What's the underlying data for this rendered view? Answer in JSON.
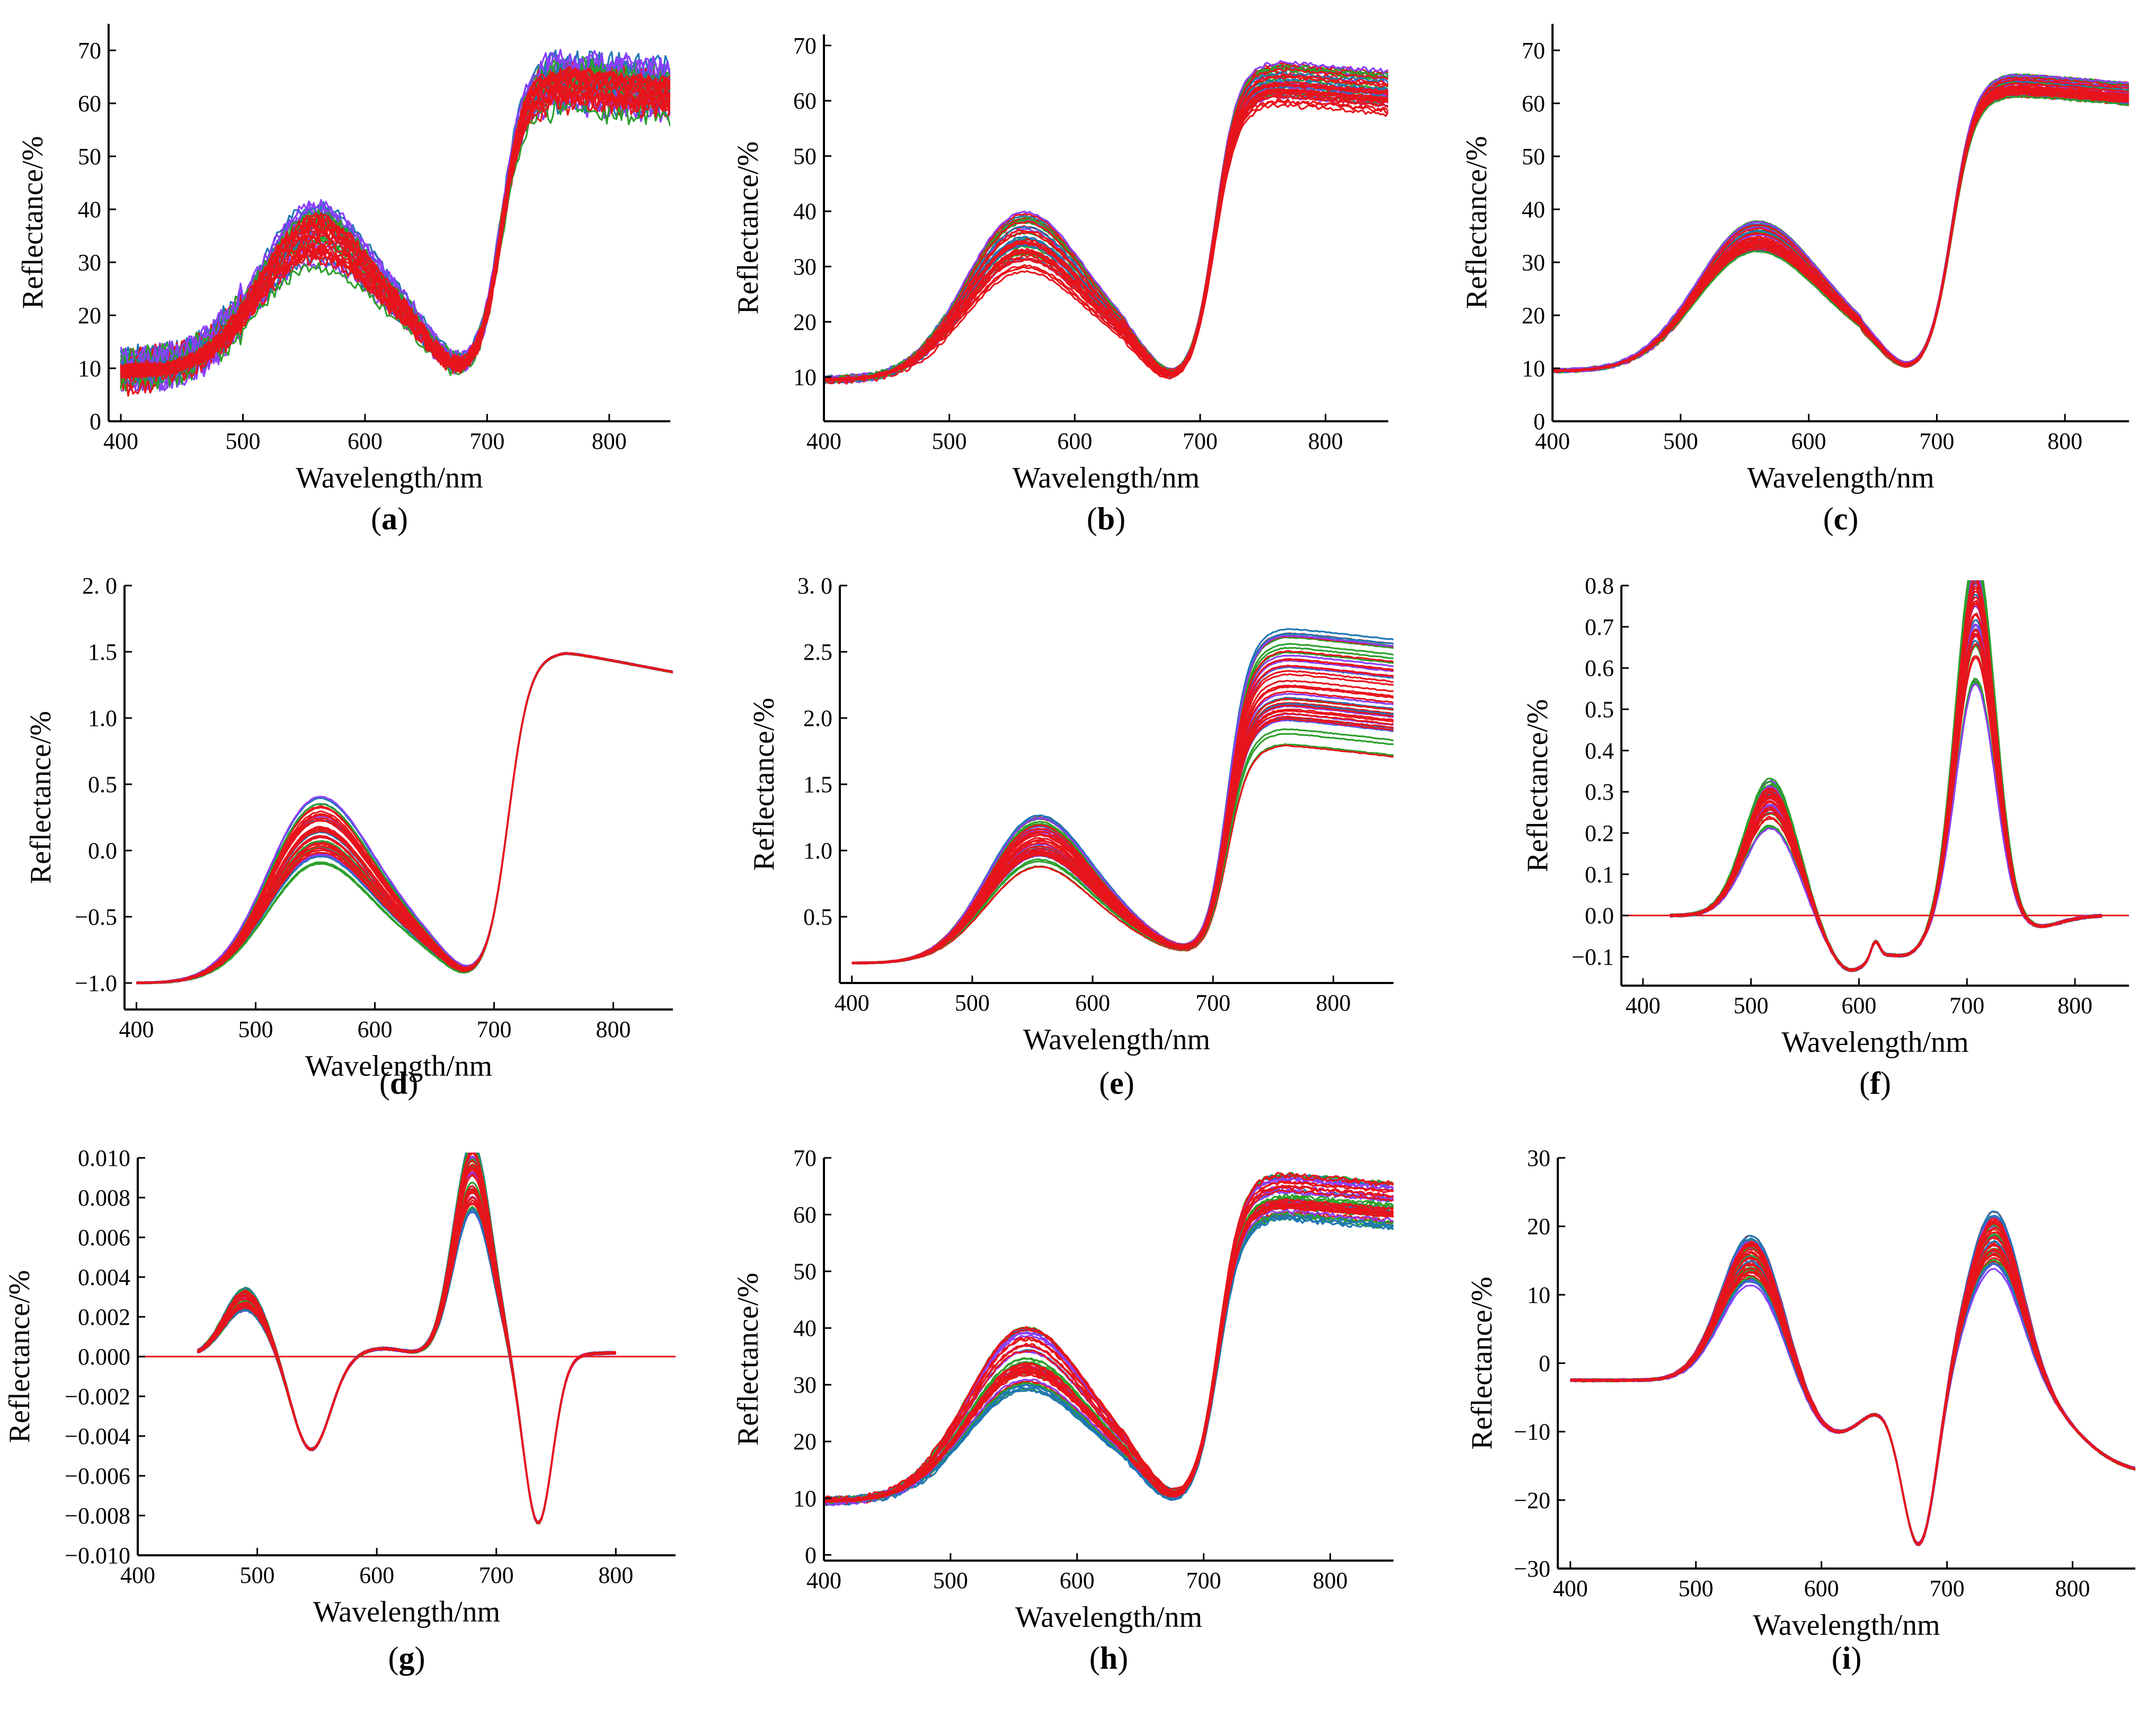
{
  "chart_data": [
    {
      "id": "a",
      "type": "line",
      "caption": "a",
      "shape": "raw",
      "noise": 3.5,
      "xlabel": "Wavelength/nm",
      "ylabel": "Reflectance/%",
      "xlim": [
        390,
        850
      ],
      "ylim": [
        0,
        75
      ],
      "xticks": [
        400,
        500,
        600,
        700,
        800
      ],
      "yticks": [
        0,
        10,
        20,
        30,
        40,
        50,
        60,
        70
      ],
      "ytick_labels": [
        "0",
        "10",
        "20",
        "30",
        "40",
        "50",
        "60",
        "70"
      ],
      "x_start": 400,
      "x_end": 850,
      "series_colors": [
        "#8a3ffc",
        "#2ca02c",
        "#1f77b4",
        "#e8141c"
      ]
    },
    {
      "id": "b",
      "type": "line",
      "caption": "b",
      "shape": "raw",
      "noise": 0.6,
      "xlabel": "Wavelength/nm",
      "ylabel": "Reflectance/%",
      "xlim": [
        400,
        850
      ],
      "ylim": [
        2,
        72
      ],
      "xticks": [
        400,
        500,
        600,
        700,
        800
      ],
      "yticks": [
        10,
        20,
        30,
        40,
        50,
        60,
        70
      ],
      "ytick_labels": [
        "10",
        "20",
        "30",
        "40",
        "50",
        "60",
        "70"
      ],
      "x_start": 400,
      "x_end": 850,
      "series_colors": [
        "#8a3ffc",
        "#2ca02c",
        "#1f77b4",
        "#e8141c"
      ]
    },
    {
      "id": "c",
      "type": "line",
      "caption": "c",
      "shape": "raw",
      "noise": 0.3,
      "spread": 0.25,
      "xlabel": "Wavelength/nm",
      "ylabel": "Reflectance/%",
      "xlim": [
        400,
        850
      ],
      "ylim": [
        0,
        75
      ],
      "xticks": [
        400,
        500,
        600,
        700,
        800
      ],
      "yticks": [
        0,
        10,
        20,
        30,
        40,
        50,
        60,
        70
      ],
      "ytick_labels": [
        "0",
        "10",
        "20",
        "30",
        "40",
        "50",
        "60",
        "70"
      ],
      "x_start": 400,
      "x_end": 850,
      "series_colors": [
        "#2ca02c",
        "#8a3ffc",
        "#1f77b4",
        "#e8141c"
      ]
    },
    {
      "id": "d",
      "type": "line",
      "caption": "d",
      "shape": "snv",
      "noise": 0.01,
      "xlabel": "Wavelength/nm",
      "ylabel": "Reflectance/%",
      "xlim": [
        390,
        850
      ],
      "ylim": [
        -1.2,
        2.0
      ],
      "xticks": [
        400,
        500,
        600,
        700,
        800
      ],
      "yticks": [
        -1.0,
        -0.5,
        0.0,
        0.5,
        1.0,
        1.5,
        2.0
      ],
      "ytick_labels": [
        "−1.0",
        "−0.5",
        "0.0",
        "0.5",
        "1.0",
        "1.5",
        "2. 0"
      ],
      "x_start": 400,
      "x_end": 850,
      "series_colors": [
        "#8a3ffc",
        "#2ca02c",
        "#1f77b4",
        "#e8141c"
      ]
    },
    {
      "id": "e",
      "type": "line",
      "caption": "e",
      "shape": "msc",
      "noise": 0.01,
      "xlabel": "Wavelength/nm",
      "ylabel": "Reflectance/%",
      "xlim": [
        390,
        850
      ],
      "ylim": [
        0.0,
        3.0
      ],
      "xticks": [
        400,
        500,
        600,
        700,
        800
      ],
      "yticks": [
        0.5,
        1.0,
        1.5,
        2.0,
        2.5,
        3.0
      ],
      "ytick_labels": [
        "0.5",
        "1.0",
        "1.5",
        "2.0",
        "2.5",
        "3. 0"
      ],
      "x_start": 400,
      "x_end": 850,
      "series_colors": [
        "#8a3ffc",
        "#2ca02c",
        "#1f77b4",
        "#e8141c"
      ]
    },
    {
      "id": "f",
      "type": "line",
      "caption": "f",
      "shape": "d1",
      "noise": 0.006,
      "xlabel": "Wavelength/nm",
      "ylabel": "Reflectance/%",
      "xlim": [
        380,
        850
      ],
      "ylim": [
        -0.17,
        0.8
      ],
      "xticks": [
        400,
        500,
        600,
        700,
        800
      ],
      "yticks": [
        -0.1,
        0.0,
        0.1,
        0.2,
        0.3,
        0.4,
        0.5,
        0.6,
        0.7,
        0.8
      ],
      "ytick_labels": [
        "−0.1",
        "0.0",
        "0.1",
        "0.2",
        "0.3",
        "0.4",
        "0.5",
        "0.6",
        "0.7",
        "0.8"
      ],
      "x_start": 425,
      "x_end": 825,
      "zero_line": true,
      "series_colors": [
        "#8a3ffc",
        "#2ca02c",
        "#1f77b4",
        "#e8141c"
      ]
    },
    {
      "id": "g",
      "type": "line",
      "caption": "g",
      "shape": "d2",
      "noise": 0.00012,
      "xlabel": "Wavelength/nm",
      "ylabel": "Reflectance/%",
      "xlim": [
        400,
        850
      ],
      "ylim": [
        -0.01,
        0.01
      ],
      "xticks": [
        400,
        500,
        600,
        700,
        800
      ],
      "yticks": [
        -0.01,
        -0.008,
        -0.006,
        -0.004,
        -0.002,
        0.0,
        0.002,
        0.004,
        0.006,
        0.008,
        0.01
      ],
      "ytick_labels": [
        "−0.010",
        "−0.008",
        "−0.006",
        "−0.004",
        "−0.002",
        "0.000",
        "0.002",
        "0.004",
        "0.006",
        "0.008",
        "0.010"
      ],
      "x_start": 450,
      "x_end": 800,
      "zero_line": true,
      "series_colors": [
        "#8a3ffc",
        "#2ca02c",
        "#1f77b4",
        "#e8141c"
      ]
    },
    {
      "id": "h",
      "type": "line",
      "caption": "h",
      "shape": "raw",
      "noise": 0.6,
      "xlabel": "Wavelength/nm",
      "ylabel": "Reflectance/%",
      "xlim": [
        400,
        850
      ],
      "ylim": [
        -1,
        70
      ],
      "xticks": [
        400,
        500,
        600,
        700,
        800
      ],
      "yticks": [
        0,
        10,
        20,
        30,
        40,
        50,
        60,
        70
      ],
      "ytick_labels": [
        "0",
        "10",
        "20",
        "30",
        "40",
        "50",
        "60",
        "70"
      ],
      "x_start": 400,
      "x_end": 850,
      "series_colors": [
        "#8a3ffc",
        "#2ca02c",
        "#1f77b4",
        "#e8141c"
      ]
    },
    {
      "id": "i",
      "type": "line",
      "caption": "i",
      "shape": "cwt",
      "noise": 0.35,
      "xlabel": "Wavelength/nm",
      "ylabel": "Reflectance/%",
      "xlim": [
        390,
        850
      ],
      "ylim": [
        -30,
        30
      ],
      "xticks": [
        400,
        500,
        600,
        700,
        800
      ],
      "yticks": [
        -30,
        -20,
        -10,
        0,
        10,
        20,
        30
      ],
      "ytick_labels": [
        "−30",
        "−20",
        "−10",
        "0",
        "10",
        "20",
        "30"
      ],
      "x_start": 400,
      "x_end": 850,
      "series_colors": [
        "#8a3ffc",
        "#2ca02c",
        "#1f77b4",
        "#e8141c"
      ]
    }
  ],
  "colors": {
    "zero_line": "#e8141c",
    "axis": "#000000"
  }
}
